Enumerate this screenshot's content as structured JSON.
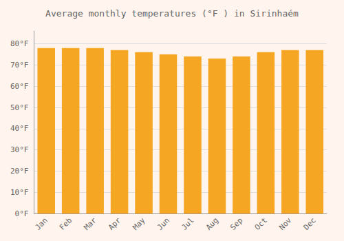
{
  "chart_data": {
    "type": "bar",
    "title": "Average monthly temperatures (°F ) in Sirinhaém",
    "categories": [
      "Jan",
      "Feb",
      "Mar",
      "Apr",
      "May",
      "Jun",
      "Jul",
      "Aug",
      "Sep",
      "Oct",
      "Nov",
      "Dec"
    ],
    "values": [
      78,
      78,
      78,
      77,
      76,
      75,
      74,
      73,
      74,
      76,
      77,
      77
    ],
    "color": "#F5A623",
    "ylim": [
      0,
      86
    ],
    "yticks": [
      {
        "value": 0,
        "label": "0°F"
      },
      {
        "value": 10,
        "label": "10°F"
      },
      {
        "value": 20,
        "label": "20°F"
      },
      {
        "value": 30,
        "label": "30°F"
      },
      {
        "value": 40,
        "label": "40°F"
      },
      {
        "value": 50,
        "label": "50°F"
      },
      {
        "value": 60,
        "label": "60°F"
      },
      {
        "value": 70,
        "label": "70°F"
      },
      {
        "value": 80,
        "label": "80°F"
      }
    ],
    "grid": true
  }
}
